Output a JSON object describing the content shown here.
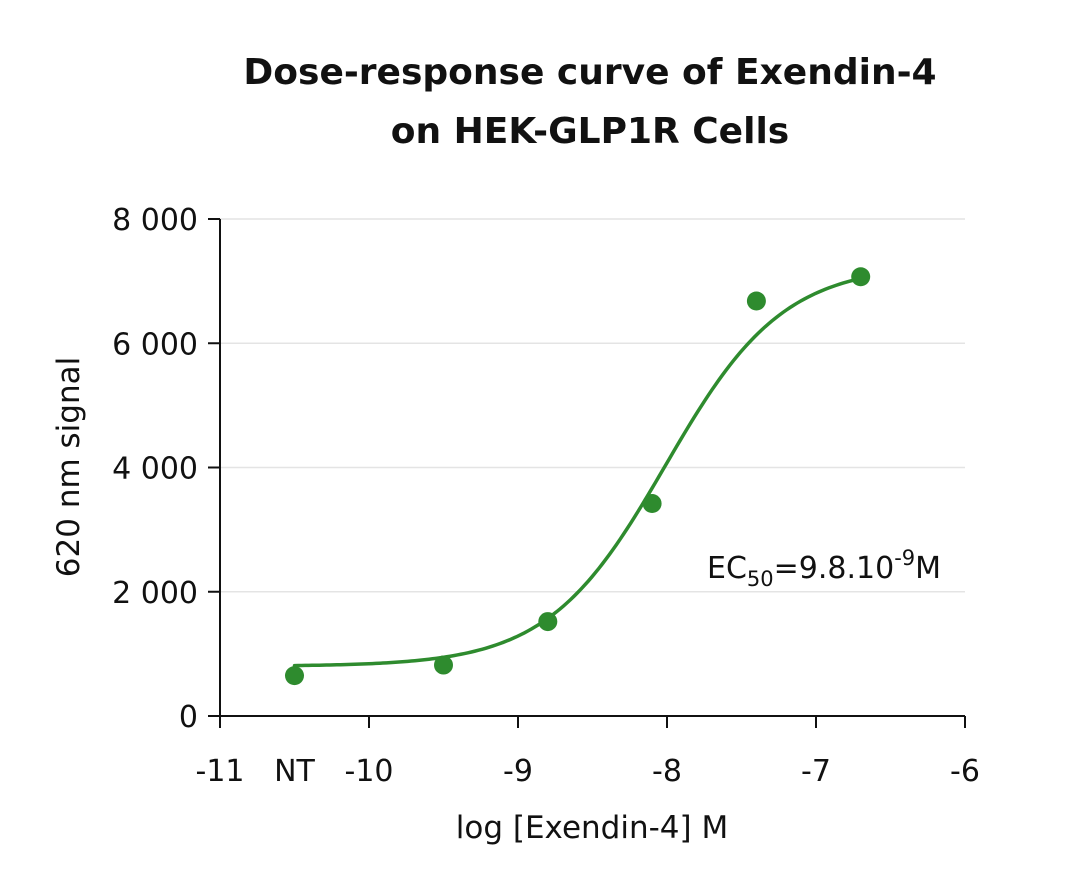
{
  "chart_data": {
    "type": "scatter",
    "title_lines": [
      "Dose-response curve of Exendin-4",
      "on HEK-GLP1R Cells"
    ],
    "xlabel": "log [Exendin-4] M",
    "ylabel": "620 nm signal",
    "xlim": [
      -11,
      -6
    ],
    "ylim": [
      0,
      8000
    ],
    "x_ticks": [
      -11,
      -10,
      -9,
      -8,
      -7,
      -6
    ],
    "x_tick_labels": [
      "-11",
      "-10",
      "-9",
      "-8",
      "-7",
      "-6"
    ],
    "x_extra_label": {
      "x": -10.5,
      "text": "NT"
    },
    "y_ticks": [
      0,
      2000,
      4000,
      6000,
      8000
    ],
    "y_tick_labels": [
      "0",
      "2 000",
      "4 000",
      "6 000",
      "8 000"
    ],
    "grid": "horizontal",
    "series": [
      {
        "color": "#2e8b2e",
        "points": [
          {
            "x": -10.5,
            "y": 650
          },
          {
            "x": -9.5,
            "y": 820
          },
          {
            "x": -8.8,
            "y": 1520
          },
          {
            "x": -8.1,
            "y": 3420
          },
          {
            "x": -7.4,
            "y": 6680
          },
          {
            "x": -6.7,
            "y": 7070
          }
        ],
        "fit": {
          "bottom": 800,
          "top": 7270,
          "logEC50": -8.01,
          "hill": 1.1,
          "x_start": -10.5,
          "x_end": -6.7
        }
      }
    ],
    "annotation": {
      "prefix": "EC",
      "subscript": "50",
      "middle": "=9.8.10",
      "superscript": "-9",
      "suffix": "M",
      "position": "right-middle"
    }
  }
}
